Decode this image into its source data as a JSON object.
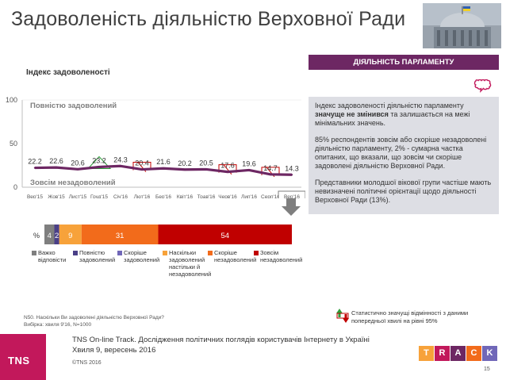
{
  "header": {
    "title": "Задоволеність діяльністю Верховної Ради",
    "badge": "ДІЯЛЬНІСТЬ ПАРЛАМЕНТУ",
    "index_label": "Індекс задоволеності"
  },
  "chart_data": [
    {
      "type": "line",
      "title": "Індекс задоволеності",
      "categories": [
        "Вер'15",
        "Жов'15",
        "Лист'15",
        "Груд'15",
        "Січ'16",
        "Лют'16",
        "Бер'16",
        "Квіт'16",
        "Трав'16",
        "Черв'16",
        "Лип'16",
        "Серп'16",
        "Вер'16"
      ],
      "values": [
        22.2,
        22.6,
        20.6,
        23.2,
        24.3,
        20.4,
        21.6,
        20.2,
        20.5,
        17.6,
        19.6,
        14.7,
        14.3
      ],
      "changes": [
        "none",
        "none",
        "none",
        "up",
        "none",
        "down",
        "none",
        "none",
        "none",
        "down",
        "none",
        "down",
        "none"
      ],
      "ylim": [
        0,
        100
      ],
      "yticks": [
        "0",
        "50",
        "100"
      ],
      "top_label": "Повністю задоволений",
      "bottom_label": "Зовсім незадоволений",
      "series_color": "#6d2763"
    },
    {
      "type": "bar",
      "stacked": true,
      "unit_label": "%",
      "segments": [
        {
          "name": "Важко відповісти",
          "value": 4,
          "color": "#7f7f7f"
        },
        {
          "name": "Повністю задоволений",
          "value": 2,
          "color": "#4a3f87"
        },
        {
          "name": "Скоріше задоволений",
          "value": 0,
          "color": "#7067b8"
        },
        {
          "name": "Наскільки задоволений настільки й незадоволений",
          "value": 9,
          "color": "#f7a23a"
        },
        {
          "name": "Скоріше незадоволений",
          "value": 31,
          "color": "#f26b1b"
        },
        {
          "name": "Зовсім незадоволений",
          "value": 54,
          "color": "#c00000"
        }
      ]
    }
  ],
  "legend": [
    {
      "lines": [
        "Важко",
        "відповісти"
      ],
      "color": "#7f7f7f"
    },
    {
      "lines": [
        "Повністю",
        "задоволений"
      ],
      "color": "#4a3f87"
    },
    {
      "lines": [
        "Скоріше",
        "задоволений"
      ],
      "color": "#7067b8"
    },
    {
      "lines": [
        "Наскільки",
        "задоволений",
        "настільки й",
        "незадоволений"
      ],
      "color": "#f7a23a"
    },
    {
      "lines": [
        "Скоріше",
        "незадоволений"
      ],
      "color": "#f26b1b"
    },
    {
      "lines": [
        "Зовсім",
        "незадоволений"
      ],
      "color": "#c00000"
    }
  ],
  "info": {
    "p1_pre": "Індекс задоволеності діяльністю парламенту ",
    "p1_bold": "значуще не змінився",
    "p1_post": " та залишається на межі мінімальних значень.",
    "p2": "85% респондентів зовсім або скоріше незадоволені діяльністю парламенту, 2% - сумарна частка опитаних, що вказали, що зовсім чи скоріше задоволені діяльністю Верховної Ради.",
    "p3": "Представники молодшої вікової групи частіше мають невизначені політичні орієнтації щодо діяльності Верховної Ради (13%)."
  },
  "footnote": {
    "line1": "N50. Наскільки Ви задоволені діяльністю Верховної Ради?",
    "line2": "Вибірка: хвиля 9'16, N=1000"
  },
  "significance": {
    "line1": "Статистично значущі відмінності з даними",
    "line2": "попередньої хвилі на рівні 95%"
  },
  "footer": {
    "logo": "TNS",
    "line1": "TNS On-line Track. Дослідження політичних поглядів користувачів Інтернету в Україні",
    "line2": "Хвиля 9, вересень 2016",
    "copyright": "©TNS 2016",
    "page": "15",
    "track_letters": [
      "T",
      "R",
      "A",
      "C",
      "K"
    ],
    "track_colors": [
      "#f7a23a",
      "#c2185b",
      "#6d2763",
      "#f26b1b",
      "#7067b8"
    ]
  },
  "colors": {
    "accent": "#6d2763",
    "up_marker": "#2e9e3a",
    "down_marker": "#c00000",
    "info_bg": "#dddee4"
  }
}
